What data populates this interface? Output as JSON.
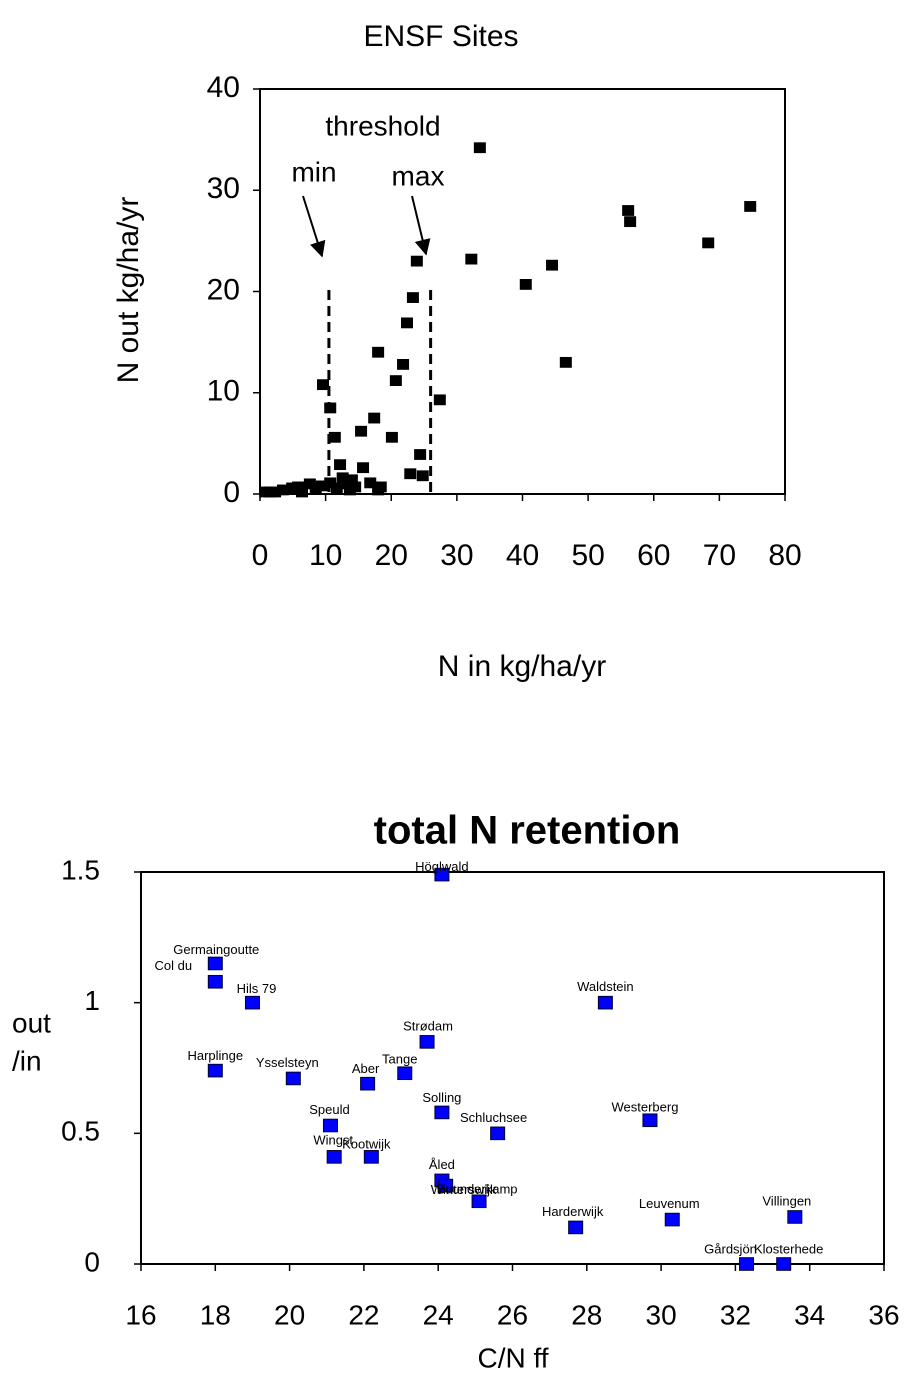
{
  "chart_data": [
    {
      "type": "scatter",
      "title": "ENSF Sites",
      "x_label": "N in kg/ha/yr",
      "y_label": "N out kg/ha/yr",
      "annotations": [
        "threshold",
        "min",
        "max"
      ],
      "thresholds": [
        10.5,
        26
      ],
      "color": "#000000",
      "x": [
        33.5,
        32.2,
        40.5,
        44.5,
        46.6,
        56.1,
        56.4,
        68.3,
        74.7,
        23.9,
        23.3,
        22.4,
        21.8,
        20.7,
        18.0,
        17.4,
        15.4,
        20.1,
        27.4,
        9.6,
        10.7,
        11.4,
        12.2,
        15.7,
        22.9,
        24.4,
        24.8,
        0.8,
        1.5,
        2.3,
        3.5,
        4.9,
        5.8,
        6.4,
        7.6,
        8.5,
        9.4,
        10.7,
        11.7,
        13.0,
        13.7,
        14.5,
        16.8,
        18.0,
        18.4,
        12.6,
        14.0
      ],
      "values": [
        34.2,
        23.2,
        20.7,
        22.6,
        13.0,
        28.0,
        26.9,
        24.8,
        28.4,
        23.0,
        19.4,
        16.9,
        12.8,
        11.2,
        14.0,
        7.5,
        6.2,
        5.6,
        9.3,
        10.8,
        8.5,
        5.6,
        2.9,
        2.6,
        2.0,
        3.9,
        1.8,
        0.2,
        0.2,
        0.2,
        0.4,
        0.6,
        0.7,
        0.2,
        1.0,
        0.5,
        0.8,
        1.1,
        0.6,
        1.0,
        0.4,
        0.7,
        1.1,
        0.4,
        0.7,
        1.6,
        1.4
      ],
      "xlim": [
        0,
        80
      ],
      "xticks": [
        0,
        10,
        20,
        30,
        40,
        50,
        60,
        70,
        80
      ],
      "ylim": [
        0,
        40
      ],
      "yticks": [
        0,
        10,
        20,
        30,
        40
      ]
    },
    {
      "type": "scatter",
      "title": "total N retention",
      "x_label": "C/N ff",
      "y_label": [
        "out",
        "/in"
      ],
      "color": "#0000ff",
      "labels": [
        "Höglwald",
        "Germaingoutte",
        "Col du",
        "Hils 79",
        "Waldstein",
        "Strødam",
        "Harplinge",
        "Ysselsteyn",
        "Tange",
        "Aber",
        "Solling",
        "Westerberg",
        "Schluchsee",
        "Speuld",
        "Wingst",
        "Kootwijk",
        "Åled",
        "Winterswijk",
        "Buunderkamp",
        "Harderwijk",
        "Leuvenum",
        "Villingen",
        "Gårdsjön",
        "Klosterhede"
      ],
      "x": [
        24.1,
        18.0,
        18.0,
        19.0,
        28.5,
        23.7,
        18.0,
        20.1,
        23.1,
        22.1,
        24.1,
        29.7,
        25.6,
        21.1,
        21.2,
        22.2,
        24.1,
        24.2,
        25.1,
        27.7,
        30.3,
        33.6,
        32.3,
        33.3
      ],
      "values": [
        1.49,
        1.15,
        1.08,
        1.0,
        1.0,
        0.85,
        0.74,
        0.71,
        0.73,
        0.69,
        0.58,
        0.55,
        0.5,
        0.53,
        0.41,
        0.41,
        0.32,
        0.3,
        0.24,
        0.14,
        0.17,
        0.18,
        0.0,
        0.0
      ],
      "xlim": [
        16,
        36
      ],
      "xticks": [
        16,
        18,
        20,
        22,
        24,
        26,
        28,
        30,
        32,
        34,
        36
      ],
      "ylim": [
        0,
        1.5
      ],
      "yticks": [
        0,
        0.5,
        1,
        1.5
      ]
    }
  ]
}
